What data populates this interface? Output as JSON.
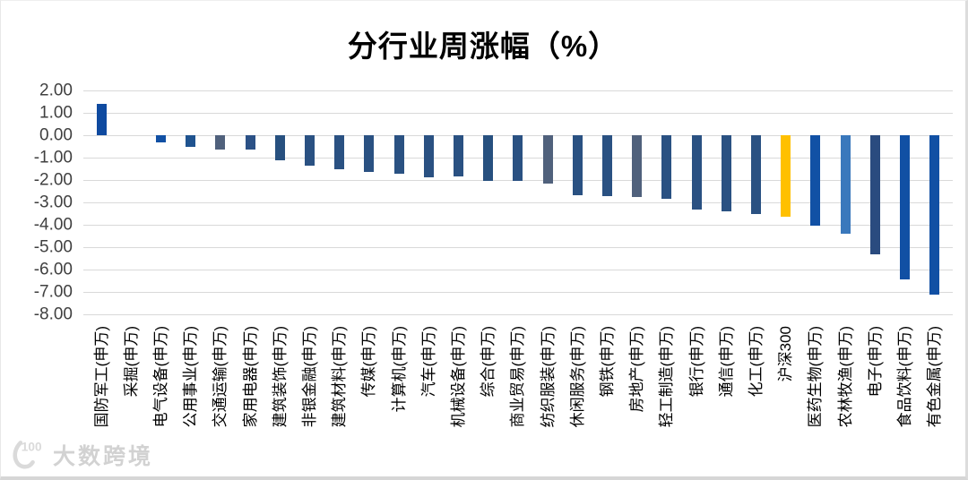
{
  "chart_data": {
    "type": "bar",
    "title": "分行业周涨幅（%）",
    "categories": [
      "国防军工(申万)",
      "采掘(申万)",
      "电气设备(申万)",
      "公用事业(申万)",
      "交通运输(申万)",
      "家用电器(申万)",
      "建筑装饰(申万)",
      "非银金融(申万)",
      "建筑材料(申万)",
      "传媒(申万)",
      "计算机(申万)",
      "汽车(申万)",
      "机械设备(申万)",
      "综合(申万)",
      "商业贸易(申万)",
      "纺织服装(申万)",
      "休闲服务(申万)",
      "钢铁(申万)",
      "房地产(申万)",
      "轻工制造(申万)",
      "银行(申万)",
      "通信(申万)",
      "化工(申万)",
      "沪深300",
      "医药生物(申万)",
      "农林牧渔(申万)",
      "电子(申万)",
      "食品饮料(申万)",
      "有色金属(申万)"
    ],
    "values": [
      1.4,
      0.0,
      -0.31,
      -0.52,
      -0.63,
      -0.62,
      -1.13,
      -1.37,
      -1.52,
      -1.64,
      -1.72,
      -1.86,
      -1.84,
      -2.02,
      -2.04,
      -2.16,
      -2.67,
      -2.73,
      -2.77,
      -2.83,
      -3.3,
      -3.38,
      -3.53,
      -3.64,
      -4.03,
      -4.41,
      -5.3,
      -6.44,
      -7.1
    ],
    "bar_colors": [
      "#0f4aa0",
      "#2a5182",
      "#1150a4",
      "#1f538f",
      "#50617c",
      "#2b5186",
      "#27507f",
      "#2a5182",
      "#2a5182",
      "#2a5182",
      "#2a5182",
      "#2a5182",
      "#2a5182",
      "#27507f",
      "#2a5182",
      "#50617c",
      "#2a5182",
      "#2a5182",
      "#50617c",
      "#2a5182",
      "#2a5182",
      "#2a5182",
      "#2a5182",
      "#ffc000",
      "#1151a5",
      "#3a78bc",
      "#2a4b7f",
      "#1150a4",
      "#1150a4"
    ],
    "xlabel": "",
    "ylabel": "",
    "ylim": [
      -8,
      2
    ],
    "ytick_labels": [
      "2.00",
      "1.00",
      "0.00",
      "-1.00",
      "-2.00",
      "-3.00",
      "-4.00",
      "-5.00",
      "-6.00",
      "-7.00",
      "-8.00"
    ],
    "grid": true,
    "legend": "none",
    "highlight_series": {
      "category": "沪深300",
      "color": "#ffc000"
    }
  },
  "colors": {
    "gridline": "#d9d9d9",
    "tick_text": "#404040",
    "title_text": "#000000",
    "watermark": "#d2d2d2"
  },
  "watermark": {
    "logo": "100-logo",
    "text": "大数跨境"
  }
}
